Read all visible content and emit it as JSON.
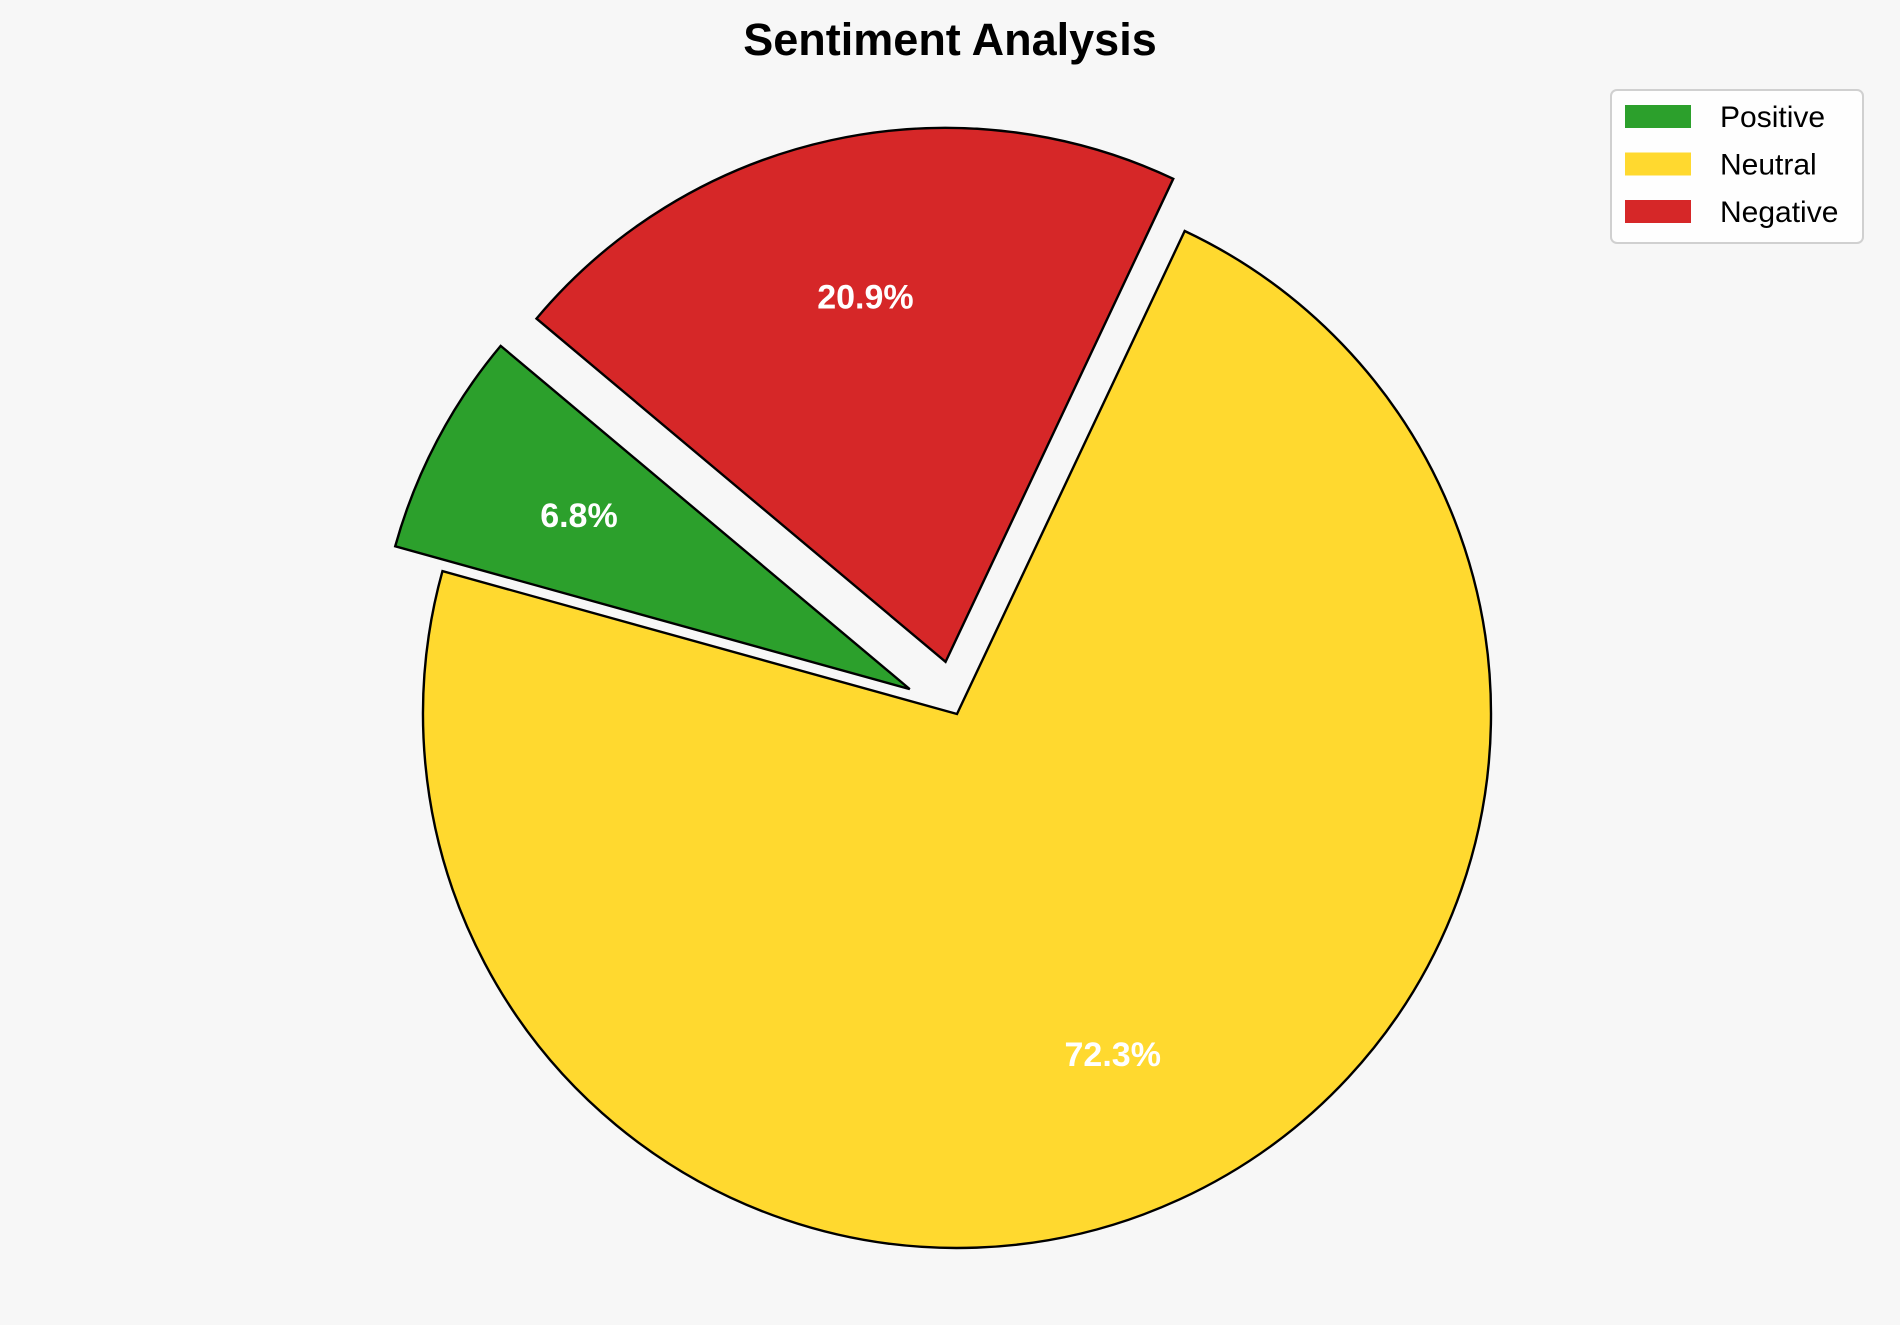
{
  "chart_data": {
    "type": "pie",
    "title": "Sentiment Analysis",
    "categories": [
      "Positive",
      "Neutral",
      "Negative"
    ],
    "values": [
      6.8,
      72.3,
      20.9
    ],
    "labels": [
      "6.8%",
      "72.3%",
      "20.9%"
    ],
    "colors": [
      "#2ca02c",
      "#ffd92f",
      "#d62728"
    ],
    "explode": [
      0.1,
      0,
      0.1
    ],
    "start_angle_deg": 140,
    "direction": "counterclockwise",
    "edge_color": "#000000",
    "label_color": "#ffffff",
    "legend_position": "top-right",
    "background": "#f7f7f7"
  }
}
